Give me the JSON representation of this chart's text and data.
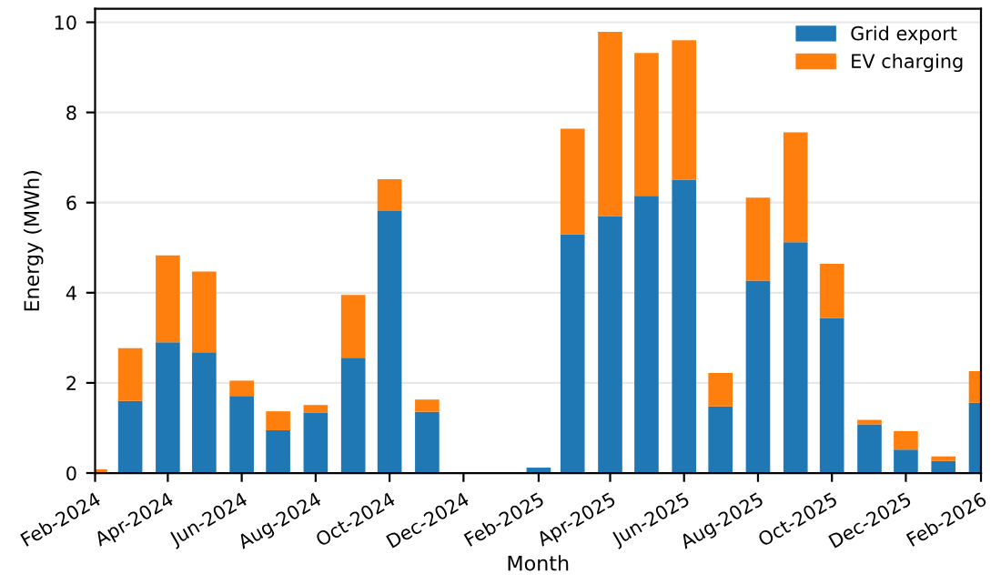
{
  "chart_data": {
    "type": "bar",
    "stacked": true,
    "xlabel": "Month",
    "ylabel": "Energy (MWh)",
    "x": [
      "2024-02",
      "2024-03",
      "2024-04",
      "2024-05",
      "2024-06",
      "2024-07",
      "2024-08",
      "2024-09",
      "2024-10",
      "2024-11",
      "2024-12",
      "2025-01",
      "2025-02",
      "2025-03",
      "2025-04",
      "2025-05",
      "2025-06",
      "2025-07",
      "2025-08",
      "2025-09",
      "2025-10",
      "2025-11",
      "2025-12",
      "2026-01",
      "2026-02"
    ],
    "series": [
      {
        "name": "Grid export",
        "color": "#1f77b4",
        "values": [
          0,
          1.6,
          2.9,
          2.68,
          1.71,
          0.95,
          1.34,
          2.56,
          5.81,
          1.36,
          0.02,
          0,
          0.12,
          5.3,
          5.7,
          6.15,
          6.51,
          1.48,
          4.27,
          5.12,
          3.44,
          1.08,
          0.52,
          0.27,
          1.56
        ]
      },
      {
        "name": "EV charging",
        "color": "#ff7f0e",
        "values": [
          0.08,
          1.17,
          1.93,
          1.79,
          0.34,
          0.42,
          0.17,
          1.39,
          0.71,
          0.27,
          0,
          0,
          0,
          2.34,
          4.09,
          3.17,
          3.09,
          0.74,
          1.84,
          2.44,
          1.2,
          0.1,
          0.41,
          0.1,
          0.7
        ]
      }
    ],
    "xlim": [
      "2024-02",
      "2026-02"
    ],
    "xticks": [
      {
        "value": "2024-02",
        "label": "Feb-2024"
      },
      {
        "value": "2024-04",
        "label": "Apr-2024"
      },
      {
        "value": "2024-06",
        "label": "Jun-2024"
      },
      {
        "value": "2024-08",
        "label": "Aug-2024"
      },
      {
        "value": "2024-10",
        "label": "Oct-2024"
      },
      {
        "value": "2024-12",
        "label": "Dec-2024"
      },
      {
        "value": "2025-02",
        "label": "Feb-2025"
      },
      {
        "value": "2025-04",
        "label": "Apr-2025"
      },
      {
        "value": "2025-06",
        "label": "Jun-2025"
      },
      {
        "value": "2025-08",
        "label": "Aug-2025"
      },
      {
        "value": "2025-10",
        "label": "Oct-2025"
      },
      {
        "value": "2025-12",
        "label": "Dec-2025"
      },
      {
        "value": "2026-02",
        "label": "Feb-2026"
      }
    ],
    "ylim": [
      0,
      10.3
    ],
    "yticks": [
      0,
      2,
      4,
      6,
      8,
      10
    ],
    "grid": "y",
    "legend": "top right"
  }
}
